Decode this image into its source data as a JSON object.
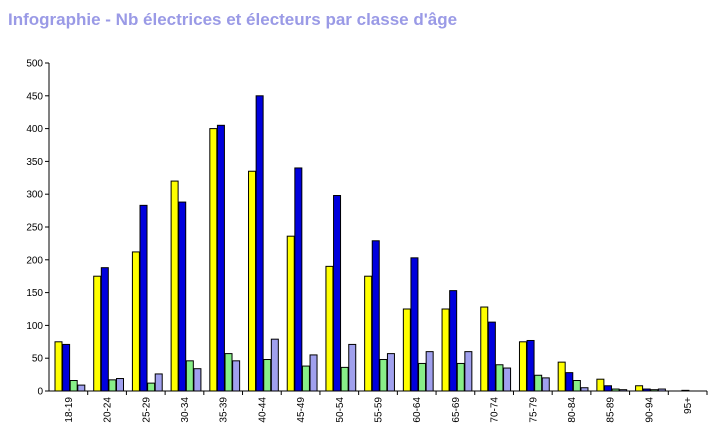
{
  "title": "Infographie - Nb électrices et électeurs par classe d'âge",
  "chart_data": {
    "type": "bar",
    "title": "Infographie - Nb électrices et électeurs par classe d'âge",
    "xlabel": "",
    "ylabel": "",
    "ylim": [
      0,
      500
    ],
    "yticks": [
      0,
      50,
      100,
      150,
      200,
      250,
      300,
      350,
      400,
      450,
      500
    ],
    "grid": false,
    "categories": [
      "18-19",
      "20-24",
      "25-29",
      "30-34",
      "35-39",
      "40-44",
      "45-49",
      "50-54",
      "55-59",
      "60-64",
      "65-69",
      "70-74",
      "75-79",
      "80-84",
      "85-89",
      "90-94",
      "95+"
    ],
    "series": [
      {
        "color": "#ffff00",
        "values": [
          75,
          175,
          212,
          320,
          400,
          335,
          236,
          190,
          175,
          125,
          125,
          128,
          75,
          44,
          18,
          8,
          0
        ]
      },
      {
        "color": "#0000dd",
        "values": [
          71,
          188,
          283,
          288,
          405,
          450,
          340,
          298,
          229,
          203,
          153,
          105,
          77,
          28,
          8,
          3,
          1
        ]
      },
      {
        "color": "#88ee88",
        "values": [
          16,
          17,
          12,
          46,
          57,
          48,
          38,
          36,
          48,
          42,
          42,
          40,
          24,
          16,
          3,
          2,
          0
        ]
      },
      {
        "color": "#a0a0ee",
        "values": [
          9,
          19,
          26,
          34,
          46,
          79,
          55,
          71,
          57,
          60,
          60,
          35,
          20,
          5,
          2,
          3,
          0
        ]
      }
    ]
  }
}
